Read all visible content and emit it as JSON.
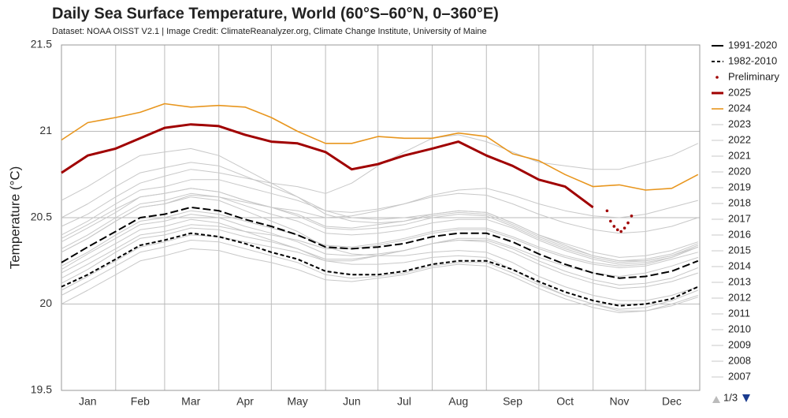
{
  "chart_data": {
    "type": "line",
    "title": "Daily Sea Surface Temperature, World (60°S–60°N, 0–360°E)",
    "subtitle": "Dataset: NOAA OISST V2.1 | Image Credit: ClimateReanalyzer.org, Climate Change Institute, University of Maine",
    "y_label": "Temperature (°C)",
    "xlim": [
      1,
      366
    ],
    "xticks": [
      {
        "value": 16,
        "label": "Jan"
      },
      {
        "value": 46,
        "label": "Feb"
      },
      {
        "value": 75,
        "label": "Mar"
      },
      {
        "value": 106,
        "label": "Apr"
      },
      {
        "value": 136,
        "label": "May"
      },
      {
        "value": 167,
        "label": "Jun"
      },
      {
        "value": 197,
        "label": "Jul"
      },
      {
        "value": 228,
        "label": "Aug"
      },
      {
        "value": 259,
        "label": "Sep"
      },
      {
        "value": 289,
        "label": "Oct"
      },
      {
        "value": 320,
        "label": "Nov"
      },
      {
        "value": 350,
        "label": "Dec"
      }
    ],
    "xgrid": [
      32,
      60,
      91,
      121,
      152,
      182,
      213,
      244,
      274,
      305,
      335
    ],
    "ylim": [
      19.5,
      21.5
    ],
    "yticks": [
      19.5,
      20,
      20.5,
      21,
      21.5
    ],
    "grid": true,
    "legend": "right",
    "legend_page": "1/3",
    "x": [
      1,
      16,
      32,
      46,
      60,
      75,
      91,
      106,
      121,
      136,
      152,
      167,
      182,
      197,
      213,
      228,
      244,
      259,
      274,
      289,
      305,
      320,
      335,
      350,
      365
    ],
    "series": [
      {
        "name": "1991-2020",
        "color": "#000000",
        "dash": "long",
        "width": 2,
        "values": [
          20.24,
          20.33,
          20.42,
          20.5,
          20.52,
          20.56,
          20.54,
          20.49,
          20.45,
          20.4,
          20.33,
          20.32,
          20.33,
          20.35,
          20.39,
          20.41,
          20.41,
          20.36,
          20.29,
          20.23,
          20.18,
          20.15,
          20.16,
          20.19,
          20.25
        ]
      },
      {
        "name": "1982-2010",
        "color": "#000000",
        "dash": "short",
        "width": 2,
        "values": [
          20.1,
          20.17,
          20.26,
          20.34,
          20.37,
          20.41,
          20.39,
          20.35,
          20.3,
          20.26,
          20.19,
          20.17,
          20.17,
          20.19,
          20.23,
          20.25,
          20.25,
          20.2,
          20.13,
          20.07,
          20.02,
          19.99,
          20.0,
          20.03,
          20.1
        ]
      },
      {
        "name": "Preliminary",
        "color": "#a00000",
        "mode": "markers",
        "x": [
          313,
          315,
          317,
          319,
          321,
          323,
          325,
          327
        ],
        "values": [
          20.54,
          20.48,
          20.45,
          20.43,
          20.42,
          20.44,
          20.47,
          20.51
        ]
      },
      {
        "name": "2025",
        "color": "#a00000",
        "width": 3,
        "values": [
          20.76,
          20.86,
          20.9,
          20.96,
          21.02,
          21.04,
          21.03,
          20.98,
          20.94,
          20.93,
          20.88,
          20.78,
          20.81,
          20.86,
          20.9,
          20.94,
          20.86,
          20.8,
          20.72,
          20.68,
          20.56,
          null,
          null,
          null,
          null
        ]
      },
      {
        "name": "2024",
        "color": "#e8961e",
        "width": 1.6,
        "values": [
          20.95,
          21.05,
          21.08,
          21.11,
          21.16,
          21.14,
          21.15,
          21.14,
          21.08,
          21.0,
          20.93,
          20.93,
          20.97,
          20.96,
          20.96,
          20.99,
          20.97,
          20.87,
          20.83,
          20.75,
          20.68,
          20.69,
          20.66,
          20.67,
          20.75
        ]
      },
      {
        "name": "2023",
        "color": "#c8c8c8",
        "width": 1,
        "values": [
          20.45,
          20.52,
          20.62,
          20.7,
          20.74,
          20.78,
          20.76,
          20.73,
          20.7,
          20.68,
          20.64,
          20.7,
          20.8,
          20.88,
          20.96,
          20.98,
          20.94,
          20.88,
          20.82,
          20.8,
          20.78,
          20.78,
          20.82,
          20.86,
          20.93
        ]
      },
      {
        "name": "2022",
        "color": "#c8c8c8",
        "width": 1,
        "values": [
          20.36,
          20.44,
          20.53,
          20.62,
          20.64,
          20.67,
          20.65,
          20.6,
          20.56,
          20.52,
          20.45,
          20.44,
          20.46,
          20.48,
          20.52,
          20.54,
          20.53,
          20.47,
          20.4,
          20.35,
          20.3,
          20.27,
          20.28,
          20.31,
          20.36
        ]
      },
      {
        "name": "2021",
        "color": "#c8c8c8",
        "width": 1,
        "values": [
          20.32,
          20.4,
          20.5,
          20.58,
          20.6,
          20.64,
          20.62,
          20.57,
          20.52,
          20.48,
          20.41,
          20.4,
          20.41,
          20.43,
          20.47,
          20.49,
          20.49,
          20.44,
          20.37,
          20.31,
          20.26,
          20.23,
          20.24,
          20.27,
          20.33
        ]
      },
      {
        "name": "2020",
        "color": "#c8c8c8",
        "width": 1,
        "values": [
          20.5,
          20.58,
          20.68,
          20.76,
          20.79,
          20.82,
          20.8,
          20.74,
          20.68,
          20.62,
          20.54,
          20.5,
          20.49,
          20.5,
          20.52,
          20.54,
          20.53,
          20.47,
          20.4,
          20.34,
          20.28,
          20.25,
          20.25,
          20.28,
          20.33
        ]
      },
      {
        "name": "2019",
        "color": "#c8c8c8",
        "width": 1,
        "values": [
          20.4,
          20.48,
          20.58,
          20.66,
          20.68,
          20.72,
          20.72,
          20.68,
          20.64,
          20.6,
          20.54,
          20.53,
          20.55,
          20.58,
          20.62,
          20.64,
          20.63,
          20.58,
          20.52,
          20.47,
          20.43,
          20.41,
          20.42,
          20.45,
          20.5
        ]
      },
      {
        "name": "2018",
        "color": "#c8c8c8",
        "width": 1,
        "values": [
          20.22,
          20.3,
          20.4,
          20.48,
          20.5,
          20.54,
          20.52,
          20.48,
          20.44,
          20.4,
          20.34,
          20.33,
          20.35,
          20.38,
          20.42,
          20.44,
          20.44,
          20.39,
          20.33,
          20.28,
          20.24,
          20.22,
          20.23,
          20.27,
          20.33
        ]
      },
      {
        "name": "2017",
        "color": "#c8c8c8",
        "width": 1,
        "values": [
          20.38,
          20.46,
          20.55,
          20.62,
          20.64,
          20.67,
          20.65,
          20.6,
          20.56,
          20.51,
          20.44,
          20.43,
          20.44,
          20.46,
          20.5,
          20.52,
          20.51,
          20.45,
          20.38,
          20.32,
          20.27,
          20.24,
          20.25,
          20.28,
          20.34
        ]
      },
      {
        "name": "2016",
        "color": "#c8c8c8",
        "width": 1,
        "values": [
          20.6,
          20.68,
          20.78,
          20.86,
          20.88,
          20.9,
          20.86,
          20.78,
          20.7,
          20.62,
          20.52,
          20.48,
          20.47,
          20.48,
          20.51,
          20.53,
          20.52,
          20.46,
          20.39,
          20.33,
          20.28,
          20.25,
          20.26,
          20.29,
          20.35
        ]
      },
      {
        "name": "2015",
        "color": "#c8c8c8",
        "width": 1,
        "values": [
          20.3,
          20.38,
          20.48,
          20.56,
          20.58,
          20.63,
          20.62,
          20.59,
          20.56,
          20.54,
          20.5,
          20.51,
          20.54,
          20.58,
          20.63,
          20.66,
          20.67,
          20.63,
          20.58,
          20.54,
          20.51,
          20.5,
          20.52,
          20.56,
          20.6
        ]
      },
      {
        "name": "2014",
        "color": "#c8c8c8",
        "width": 1,
        "values": [
          20.15,
          20.23,
          20.32,
          20.4,
          20.42,
          20.46,
          20.45,
          20.42,
          20.4,
          20.37,
          20.32,
          20.32,
          20.34,
          20.37,
          20.41,
          20.43,
          20.43,
          20.38,
          20.32,
          20.27,
          20.23,
          20.21,
          20.22,
          20.26,
          20.3
        ]
      },
      {
        "name": "2013",
        "color": "#c8c8c8",
        "width": 1,
        "values": [
          20.2,
          20.29,
          20.38,
          20.46,
          20.48,
          20.52,
          20.5,
          20.45,
          20.41,
          20.36,
          20.29,
          20.28,
          20.29,
          20.31,
          20.35,
          20.37,
          20.37,
          20.32,
          20.25,
          20.19,
          20.14,
          20.11,
          20.12,
          20.15,
          20.21
        ]
      },
      {
        "name": "2012",
        "color": "#c8c8c8",
        "width": 1,
        "values": [
          20.12,
          20.2,
          20.3,
          20.38,
          20.4,
          20.44,
          20.43,
          20.39,
          20.36,
          20.32,
          20.26,
          20.26,
          20.28,
          20.31,
          20.35,
          20.37,
          20.36,
          20.3,
          20.23,
          20.17,
          20.12,
          20.09,
          20.1,
          20.13,
          20.18
        ]
      },
      {
        "name": "2011",
        "color": "#c8c8c8",
        "width": 1,
        "values": [
          20.05,
          20.13,
          20.22,
          20.3,
          20.33,
          20.37,
          20.36,
          20.32,
          20.28,
          20.24,
          20.17,
          20.15,
          20.16,
          20.18,
          20.22,
          20.24,
          20.24,
          20.18,
          20.11,
          20.05,
          20.0,
          19.97,
          19.98,
          20.02,
          20.08
        ]
      },
      {
        "name": "2010",
        "color": "#c8c8c8",
        "width": 1,
        "values": [
          20.3,
          20.38,
          20.48,
          20.56,
          20.58,
          20.62,
          20.6,
          20.54,
          20.48,
          20.42,
          20.33,
          20.29,
          20.28,
          20.28,
          20.3,
          20.31,
          20.3,
          20.24,
          20.16,
          20.1,
          20.05,
          20.02,
          20.02,
          20.05,
          20.1
        ]
      },
      {
        "name": "2009",
        "color": "#c8c8c8",
        "width": 1,
        "values": [
          20.08,
          20.16,
          20.25,
          20.33,
          20.36,
          20.4,
          20.39,
          20.36,
          20.33,
          20.3,
          20.25,
          20.25,
          20.28,
          20.31,
          20.35,
          20.38,
          20.38,
          20.33,
          20.27,
          20.22,
          20.18,
          20.16,
          20.18,
          20.22,
          20.27
        ]
      },
      {
        "name": "2008",
        "color": "#c8c8c8",
        "width": 1,
        "values": [
          20.0,
          20.08,
          20.17,
          20.25,
          20.28,
          20.32,
          20.31,
          20.27,
          20.24,
          20.2,
          20.14,
          20.13,
          20.15,
          20.17,
          20.21,
          20.23,
          20.22,
          20.16,
          20.09,
          20.03,
          19.98,
          19.95,
          19.96,
          20.0,
          20.05
        ]
      },
      {
        "name": "2007",
        "color": "#c8c8c8",
        "width": 1,
        "values": [
          20.18,
          20.26,
          20.35,
          20.43,
          20.45,
          20.49,
          20.47,
          20.42,
          20.37,
          20.32,
          20.25,
          20.23,
          20.23,
          20.24,
          20.27,
          20.28,
          20.27,
          20.2,
          20.12,
          20.05,
          20.0,
          19.96,
          19.96,
          19.99,
          20.04
        ]
      }
    ]
  }
}
